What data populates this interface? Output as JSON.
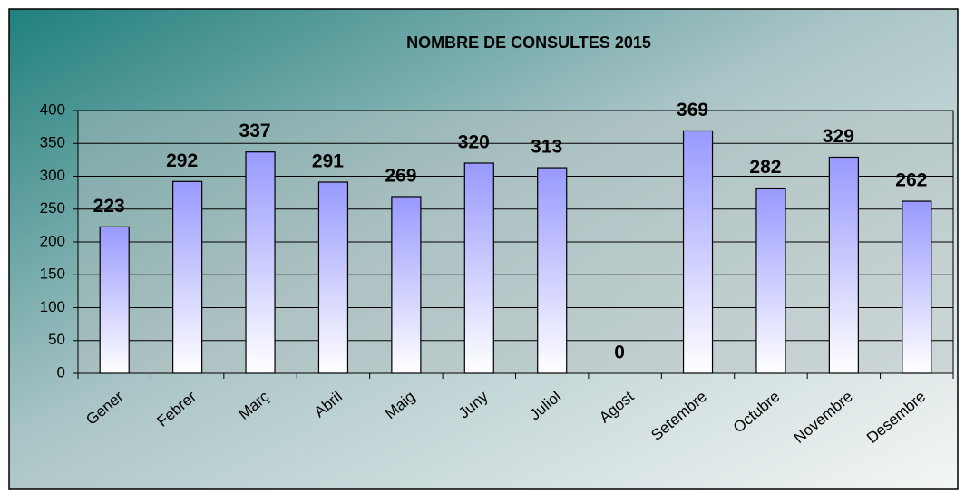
{
  "chart_data": {
    "type": "bar",
    "title": "NOMBRE DE CONSULTES  2015",
    "categories": [
      "Gener",
      "Febrer",
      "Març",
      "Abril",
      "Maig",
      "Juny",
      "Juliol",
      "Agost",
      "Setembre",
      "Octubre",
      "Novembre",
      "Desembre"
    ],
    "values": [
      223,
      292,
      337,
      291,
      269,
      320,
      313,
      0,
      369,
      282,
      329,
      262
    ],
    "color": "#9999ff",
    "ylim": [
      0,
      400
    ],
    "yticks": [
      0,
      50,
      100,
      150,
      200,
      250,
      300,
      350,
      400
    ],
    "grid": true
  }
}
